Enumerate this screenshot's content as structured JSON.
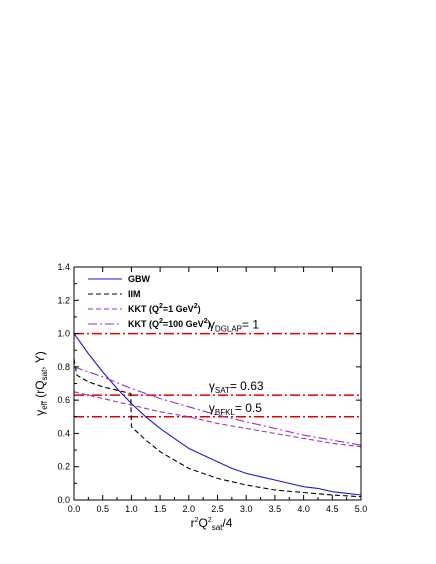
{
  "chart_data": {
    "type": "line",
    "xlabel": {
      "main": "r",
      "sup1": "2",
      "mid": "Q",
      "sup2": "2",
      "sub": "sat",
      "tail": "/4"
    },
    "ylabel": {
      "main": "γ",
      "sub": "eff",
      "tail1": " (rQ",
      "sub2": "sat",
      "tail2": ", Y)"
    },
    "xlim": [
      0,
      5
    ],
    "ylim": [
      0,
      1.4
    ],
    "xticks": [
      "0.0",
      "0.5",
      "1.0",
      "1.5",
      "2.0",
      "2.5",
      "3.0",
      "3.5",
      "4.0",
      "4.5",
      "5.0"
    ],
    "yticks": [
      "0.0",
      "0.2",
      "0.4",
      "0.6",
      "0.8",
      "1.0",
      "1.2",
      "1.4"
    ],
    "grid": false,
    "legend_position": "top-left",
    "legend": [
      {
        "label": "GBW",
        "style": "solid",
        "color": "#1a1adb"
      },
      {
        "label": "IIM",
        "style": "dashed",
        "color": "#000000"
      },
      {
        "label_parts": [
          "KKT (Q",
          "2",
          "=1 GeV",
          "2",
          ")"
        ],
        "style": "dashed",
        "color": "#9a30c8"
      },
      {
        "label_parts": [
          "KKT (Q",
          "2",
          "=100 GeV",
          "2",
          ")"
        ],
        "style": "dashdot",
        "color": "#9a30c8"
      }
    ],
    "series": [
      {
        "name": "GBW",
        "color": "#1a1adb",
        "style": "solid",
        "x": [
          0.0,
          0.25,
          0.5,
          0.75,
          1.0,
          1.25,
          1.5,
          1.75,
          2.0,
          2.25,
          2.5,
          2.75,
          3.0,
          3.25,
          3.5,
          3.75,
          4.0,
          4.25,
          4.5,
          4.75,
          5.0
        ],
        "y": [
          1.0,
          0.88,
          0.77,
          0.67,
          0.58,
          0.5,
          0.43,
          0.37,
          0.31,
          0.27,
          0.23,
          0.19,
          0.16,
          0.14,
          0.12,
          0.1,
          0.08,
          0.07,
          0.05,
          0.04,
          0.03
        ]
      },
      {
        "name": "IIM",
        "color": "#000000",
        "style": "dashed",
        "x": [
          0.0,
          0.05,
          0.25,
          0.5,
          0.75,
          0.99,
          1.0,
          1.25,
          1.5,
          1.75,
          2.0,
          2.5,
          3.0,
          3.5,
          4.0,
          4.5,
          5.0
        ],
        "y": [
          0.85,
          0.75,
          0.71,
          0.68,
          0.66,
          0.64,
          0.44,
          0.36,
          0.29,
          0.24,
          0.19,
          0.13,
          0.09,
          0.06,
          0.045,
          0.03,
          0.02
        ]
      },
      {
        "name": "KKT (Q2=1 GeV2)",
        "color": "#9a30c8",
        "style": "dashed",
        "x": [
          0.0,
          0.5,
          1.0,
          1.5,
          2.0,
          2.5,
          3.0,
          3.5,
          4.0,
          4.5,
          5.0
        ],
        "y": [
          0.65,
          0.61,
          0.57,
          0.53,
          0.5,
          0.46,
          0.43,
          0.4,
          0.37,
          0.34,
          0.32
        ]
      },
      {
        "name": "KKT (Q2=100 GeV2)",
        "color": "#9a30c8",
        "style": "dashdot",
        "x": [
          0.0,
          0.5,
          1.0,
          1.5,
          2.0,
          2.5,
          3.0,
          3.5,
          4.0,
          4.5,
          5.0
        ],
        "y": [
          0.8,
          0.74,
          0.67,
          0.61,
          0.56,
          0.51,
          0.47,
          0.43,
          0.39,
          0.36,
          0.33
        ]
      }
    ],
    "reference_lines": [
      {
        "y": 1.0,
        "color": "#e00000"
      },
      {
        "y": 0.63,
        "color": "#e00000"
      },
      {
        "y": 0.5,
        "color": "#e00000"
      }
    ],
    "annotations": [
      {
        "main": "γ",
        "sub": "DGLAP",
        "tail": "= 1",
        "x": 2.35,
        "y": 1.03
      },
      {
        "main": "γ",
        "sub": "SAT",
        "tail": "= 0.63",
        "x": 2.35,
        "y": 0.66
      },
      {
        "main": "γ",
        "sub": "BFKL",
        "tail": "= 0.5",
        "x": 2.35,
        "y": 0.53
      }
    ]
  }
}
